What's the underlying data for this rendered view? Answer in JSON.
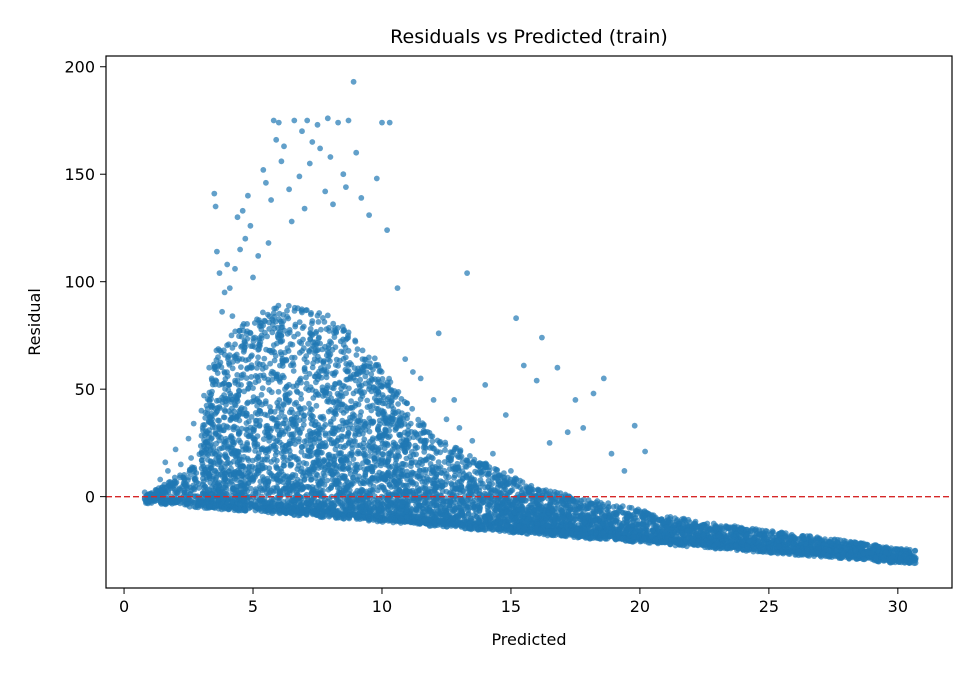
{
  "chart_data": {
    "type": "scatter",
    "title": "Residuals vs Predicted (train)",
    "xlabel": "Predicted",
    "ylabel": "Residual",
    "xlim": [
      -0.7,
      32.1
    ],
    "ylim": [
      -42.5,
      205
    ],
    "x_ticks": [
      0,
      5,
      10,
      15,
      20,
      25,
      30
    ],
    "y_ticks": [
      0,
      50,
      100,
      150,
      200
    ],
    "grid": false,
    "legend": "none",
    "point_color": "#1f77b4",
    "reference_line": {
      "y": 0,
      "color": "#d62728",
      "style": "dashed"
    },
    "series": [
      {
        "points": [
          [
            0.8,
            2
          ],
          [
            1.1,
            1
          ],
          [
            1.4,
            8
          ],
          [
            1.5,
            3
          ],
          [
            1.6,
            16
          ],
          [
            1.7,
            12
          ],
          [
            1.9,
            6
          ],
          [
            2.0,
            22
          ],
          [
            2.2,
            15
          ],
          [
            2.3,
            9
          ],
          [
            2.5,
            27
          ],
          [
            2.6,
            18
          ],
          [
            2.7,
            34
          ],
          [
            2.8,
            11
          ],
          [
            2.9,
            4
          ],
          [
            3.0,
            40
          ],
          [
            3.1,
            47
          ],
          [
            3.2,
            25
          ],
          [
            3.3,
            60
          ],
          [
            3.4,
            55
          ],
          [
            3.5,
            141
          ],
          [
            3.55,
            135
          ],
          [
            3.6,
            114
          ],
          [
            3.7,
            104
          ],
          [
            3.8,
            86
          ],
          [
            3.9,
            95
          ],
          [
            4.0,
            108
          ],
          [
            4.1,
            97
          ],
          [
            4.2,
            84
          ],
          [
            4.3,
            106
          ],
          [
            4.4,
            130
          ],
          [
            4.5,
            115
          ],
          [
            4.6,
            133
          ],
          [
            4.7,
            120
          ],
          [
            4.8,
            140
          ],
          [
            4.9,
            126
          ],
          [
            5.0,
            102
          ],
          [
            5.2,
            112
          ],
          [
            5.4,
            152
          ],
          [
            5.5,
            146
          ],
          [
            5.6,
            118
          ],
          [
            5.7,
            138
          ],
          [
            5.8,
            175
          ],
          [
            5.9,
            166
          ],
          [
            6.0,
            174
          ],
          [
            6.1,
            156
          ],
          [
            6.2,
            163
          ],
          [
            6.4,
            143
          ],
          [
            6.5,
            128
          ],
          [
            6.6,
            175
          ],
          [
            6.8,
            149
          ],
          [
            6.9,
            170
          ],
          [
            7.0,
            134
          ],
          [
            7.1,
            175
          ],
          [
            7.2,
            155
          ],
          [
            7.3,
            165
          ],
          [
            7.5,
            173
          ],
          [
            7.6,
            162
          ],
          [
            7.8,
            142
          ],
          [
            7.9,
            176
          ],
          [
            8.0,
            158
          ],
          [
            8.1,
            136
          ],
          [
            8.3,
            174
          ],
          [
            8.5,
            150
          ],
          [
            8.6,
            144
          ],
          [
            8.7,
            175
          ],
          [
            8.9,
            193
          ],
          [
            9.0,
            160
          ],
          [
            9.2,
            139
          ],
          [
            9.5,
            131
          ],
          [
            9.8,
            148
          ],
          [
            10.0,
            174
          ],
          [
            10.2,
            124
          ],
          [
            10.3,
            174
          ],
          [
            10.6,
            97
          ],
          [
            10.9,
            64
          ],
          [
            11.2,
            58
          ],
          [
            11.5,
            55
          ],
          [
            12.0,
            45
          ],
          [
            12.2,
            76
          ],
          [
            12.5,
            36
          ],
          [
            12.8,
            45
          ],
          [
            13.0,
            32
          ],
          [
            13.3,
            104
          ],
          [
            13.5,
            26
          ],
          [
            14.0,
            52
          ],
          [
            14.3,
            20
          ],
          [
            14.8,
            38
          ],
          [
            15.0,
            12
          ],
          [
            15.2,
            83
          ],
          [
            15.5,
            61
          ],
          [
            16.0,
            54
          ],
          [
            16.2,
            74
          ],
          [
            16.5,
            25
          ],
          [
            16.8,
            60
          ],
          [
            17.2,
            30
          ],
          [
            17.5,
            45
          ],
          [
            17.8,
            32
          ],
          [
            18.2,
            48
          ],
          [
            18.6,
            55
          ],
          [
            18.9,
            20
          ],
          [
            19.4,
            12
          ],
          [
            19.8,
            33
          ],
          [
            20.2,
            21
          ]
        ]
      }
    ]
  }
}
